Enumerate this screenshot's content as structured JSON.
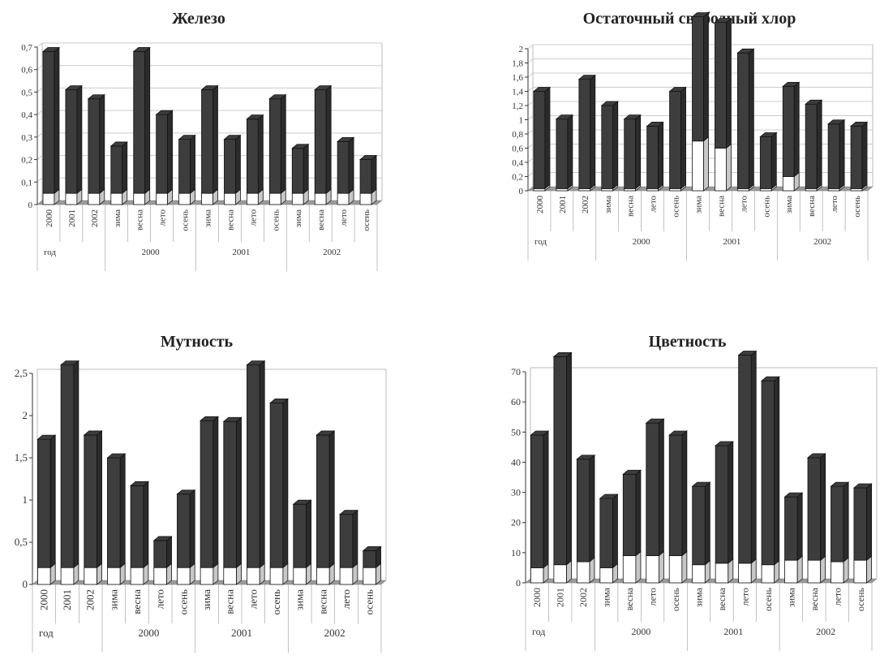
{
  "chart_data": [
    {
      "type": "bar",
      "title": "Железо",
      "ylim": [
        0,
        0.7
      ],
      "yticks": [
        "0",
        "0,1",
        "0,2",
        "0,3",
        "0,4",
        "0,5",
        "0,6",
        "0,7"
      ],
      "ytick_values": [
        0,
        0.1,
        0.2,
        0.3,
        0.4,
        0.5,
        0.6,
        0.7
      ],
      "categories": [
        "2000",
        "2001",
        "2002",
        "зима",
        "весна",
        "лето",
        "осень",
        "зима",
        "весна",
        "лето",
        "осень",
        "зима",
        "весна",
        "лето",
        "осень"
      ],
      "groups": [
        {
          "label": "год",
          "count": 3
        },
        {
          "label": "2000",
          "count": 4
        },
        {
          "label": "2001",
          "count": 4
        },
        {
          "label": "2002",
          "count": 4
        }
      ],
      "series": [
        {
          "values": [
            0.05,
            0.05,
            0.05,
            0.05,
            0.05,
            0.05,
            0.05,
            0.05,
            0.05,
            0.05,
            0.05,
            0.05,
            0.05,
            0.05,
            0.05
          ],
          "color": "#ffffff"
        },
        {
          "values": [
            0.63,
            0.46,
            0.42,
            0.21,
            0.63,
            0.35,
            0.24,
            0.46,
            0.24,
            0.33,
            0.42,
            0.2,
            0.46,
            0.23,
            0.15
          ],
          "color": "#3d3d3d"
        }
      ],
      "grid": true
    },
    {
      "type": "bar",
      "title": "Остаточный свободный хлор",
      "ylim": [
        0,
        2
      ],
      "yticks": [
        "0",
        "0,2",
        "0,4",
        "0,6",
        "0,8",
        "1",
        "1,2",
        "1,4",
        "1,6",
        "1,8",
        "2"
      ],
      "ytick_values": [
        0,
        0.2,
        0.4,
        0.6,
        0.8,
        1,
        1.2,
        1.4,
        1.6,
        1.8,
        2
      ],
      "categories": [
        "2000",
        "2001",
        "2002",
        "зима",
        "весна",
        "лето",
        "осень",
        "зима",
        "весна",
        "лето",
        "осень",
        "зима",
        "весна",
        "лето",
        "осень"
      ],
      "groups": [
        {
          "label": "год",
          "count": 3
        },
        {
          "label": "2000",
          "count": 4
        },
        {
          "label": "2001",
          "count": 4
        },
        {
          "label": "2002",
          "count": 4
        }
      ],
      "series": [
        {
          "values": [
            0.03,
            0.03,
            0.03,
            0.03,
            0.03,
            0.03,
            0.03,
            0.7,
            0.6,
            0.03,
            0.03,
            0.2,
            0.03,
            0.03,
            0.03
          ],
          "color": "#ffffff"
        },
        {
          "values": [
            1.37,
            0.98,
            1.54,
            1.17,
            0.98,
            0.88,
            1.37,
            1.75,
            1.77,
            1.91,
            0.73,
            1.27,
            1.19,
            0.91,
            0.88
          ],
          "color": "#3d3d3d"
        }
      ],
      "grid": true
    },
    {
      "type": "bar",
      "title": "Мутность",
      "ylim": [
        0,
        2.5
      ],
      "yticks": [
        "0",
        "0,5",
        "1",
        "1,5",
        "2",
        "2,5"
      ],
      "ytick_values": [
        0,
        0.5,
        1,
        1.5,
        2,
        2.5
      ],
      "categories": [
        "2000",
        "2001",
        "2002",
        "зима",
        "весна",
        "лето",
        "осень",
        "зима",
        "весна",
        "лето",
        "осень",
        "зима",
        "весна",
        "лето",
        "осень"
      ],
      "groups": [
        {
          "label": "год",
          "count": 3
        },
        {
          "label": "2000",
          "count": 4
        },
        {
          "label": "2001",
          "count": 4
        },
        {
          "label": "2002",
          "count": 4
        }
      ],
      "series": [
        {
          "values": [
            0.2,
            0.2,
            0.2,
            0.2,
            0.2,
            0.2,
            0.2,
            0.2,
            0.2,
            0.2,
            0.2,
            0.2,
            0.2,
            0.2,
            0.2
          ],
          "color": "#ffffff"
        },
        {
          "values": [
            1.52,
            2.4,
            1.57,
            1.3,
            0.97,
            0.32,
            0.87,
            1.74,
            1.73,
            2.4,
            1.95,
            0.75,
            1.57,
            0.63,
            0.2
          ],
          "color": "#3d3d3d"
        }
      ],
      "grid": false
    },
    {
      "type": "bar",
      "title": "Цветность",
      "ylim": [
        0,
        70
      ],
      "yticks": [
        "0",
        "10",
        "20",
        "30",
        "40",
        "50",
        "60",
        "70"
      ],
      "ytick_values": [
        0,
        10,
        20,
        30,
        40,
        50,
        60,
        70
      ],
      "categories": [
        "2000",
        "2001",
        "2002",
        "зима",
        "весна",
        "лето",
        "осень",
        "зима",
        "весна",
        "лето",
        "осень",
        "зима",
        "весна",
        "лето",
        "осень"
      ],
      "groups": [
        {
          "label": "год",
          "count": 3
        },
        {
          "label": "2000",
          "count": 4
        },
        {
          "label": "2001",
          "count": 4
        },
        {
          "label": "2002",
          "count": 4
        }
      ],
      "series": [
        {
          "values": [
            5,
            6,
            7,
            5,
            9,
            9,
            9,
            6,
            6.5,
            6.5,
            6,
            7.5,
            7.5,
            7,
            7.5
          ],
          "color": "#ffffff"
        },
        {
          "values": [
            44,
            69,
            34,
            23,
            27,
            44,
            40,
            26,
            39,
            69,
            61,
            21,
            34,
            25,
            24
          ],
          "color": "#3d3d3d"
        }
      ],
      "grid": false
    }
  ]
}
